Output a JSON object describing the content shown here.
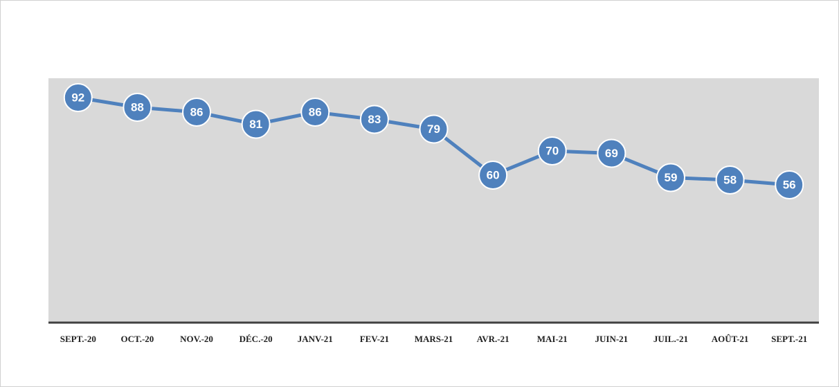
{
  "chart_data": {
    "type": "line",
    "categories": [
      "SEPT.-20",
      "OCT.-20",
      "NOV.-20",
      "DÉC.-20",
      "JANV-21",
      "FEV-21",
      "MARS-21",
      "AVR.-21",
      "MAI-21",
      "JUIN-21",
      "JUIL.-21",
      "AOÛT-21",
      "SEPT.-21"
    ],
    "values": [
      92,
      88,
      86,
      81,
      86,
      83,
      79,
      60,
      70,
      69,
      59,
      58,
      56
    ],
    "color": "#4f81bd",
    "ylim": [
      0,
      100
    ],
    "grid": false
  }
}
